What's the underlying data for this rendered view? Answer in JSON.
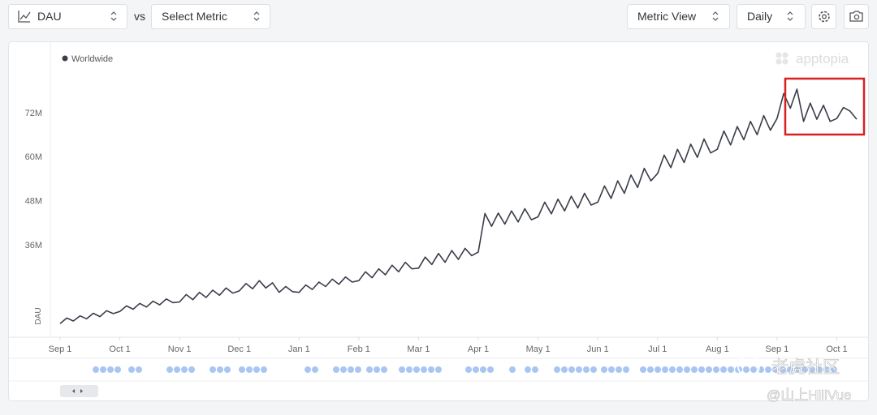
{
  "toolbar": {
    "metric": "DAU",
    "vs": "vs",
    "compare": "Select Metric",
    "view": "Metric View",
    "interval": "Daily"
  },
  "chart_data": {
    "type": "line",
    "brand": "apptopia",
    "y_label": "DAU",
    "x": [
      "Sep 1",
      "Sep 4",
      "Sep 8",
      "Sep 11",
      "Sep 15",
      "Sep 18",
      "Sep 22",
      "Sep 25",
      "Sep 29",
      "Oct 1",
      "Oct 4",
      "Oct 8",
      "Oct 11",
      "Oct 15",
      "Oct 18",
      "Oct 22",
      "Oct 25",
      "Oct 29",
      "Nov 1",
      "Nov 4",
      "Nov 8",
      "Nov 11",
      "Nov 15",
      "Nov 18",
      "Nov 22",
      "Nov 25",
      "Nov 29",
      "Dec 1",
      "Dec 4",
      "Dec 8",
      "Dec 11",
      "Dec 15",
      "Dec 18",
      "Dec 22",
      "Dec 25",
      "Dec 29",
      "Jan 1",
      "Jan 4",
      "Jan 8",
      "Jan 11",
      "Jan 15",
      "Jan 18",
      "Jan 22",
      "Jan 25",
      "Jan 29",
      "Feb 1",
      "Feb 4",
      "Feb 8",
      "Feb 11",
      "Feb 15",
      "Feb 18",
      "Feb 22",
      "Feb 25",
      "Feb 28",
      "Mar 1",
      "Mar 4",
      "Mar 8",
      "Mar 11",
      "Mar 15",
      "Mar 18",
      "Mar 22",
      "Mar 25",
      "Mar 29",
      "Apr 1",
      "Apr 4",
      "Apr 8",
      "Apr 11",
      "Apr 15",
      "Apr 18",
      "Apr 22",
      "Apr 25",
      "Apr 29",
      "May 1",
      "May 4",
      "May 8",
      "May 11",
      "May 15",
      "May 18",
      "May 22",
      "May 25",
      "May 29",
      "Jun 1",
      "Jun 4",
      "Jun 8",
      "Jun 11",
      "Jun 15",
      "Jun 18",
      "Jun 22",
      "Jun 25",
      "Jun 29",
      "Jul 1",
      "Jul 4",
      "Jul 8",
      "Jul 11",
      "Jul 15",
      "Jul 18",
      "Jul 22",
      "Jul 25",
      "Jul 29",
      "Aug 1",
      "Aug 4",
      "Aug 8",
      "Aug 11",
      "Aug 15",
      "Aug 18",
      "Aug 22",
      "Aug 25",
      "Aug 29",
      "Sep 1",
      "Sep 4",
      "Sep 8",
      "Sep 11",
      "Sep 15",
      "Sep 18",
      "Sep 22",
      "Sep 25",
      "Sep 29",
      "Oct 1",
      "Oct 4",
      "Oct 8",
      "Oct 11"
    ],
    "series": [
      {
        "name": "Worldwide",
        "color": "#3a3d4a",
        "values": [
          14.5,
          16,
          15.2,
          16.6,
          15.8,
          17.3,
          16.4,
          18,
          17.2,
          17.8,
          19.3,
          18.4,
          20,
          19,
          20.6,
          19.6,
          21.2,
          20.2,
          20.4,
          22.4,
          21,
          23,
          21.6,
          23.6,
          22.2,
          24.2,
          22.8,
          23.4,
          25.4,
          24,
          26.2,
          24.2,
          25.6,
          23,
          24.6,
          23.2,
          23,
          25,
          23.8,
          25.8,
          24.6,
          26.6,
          25.2,
          27.2,
          25.8,
          26.2,
          28.6,
          27,
          29.4,
          27.8,
          30.4,
          28.6,
          31.2,
          29.4,
          29.6,
          32.6,
          30.6,
          33.6,
          31.2,
          34.4,
          32,
          35,
          33,
          34,
          44.5,
          41,
          44.6,
          41.6,
          45.2,
          42.2,
          45.8,
          42.8,
          43.6,
          47.6,
          44.4,
          48.4,
          45.2,
          49.2,
          46,
          50,
          46.8,
          47.6,
          52,
          48.6,
          53.4,
          50,
          55,
          51.6,
          56.8,
          53.4,
          55.4,
          60.4,
          57,
          62,
          58.4,
          63.4,
          59.8,
          64.8,
          61,
          62,
          67,
          63.2,
          68.2,
          64.6,
          69.6,
          66,
          71.2,
          67.2,
          70.4,
          77.2,
          73.2,
          78.4,
          69.6,
          74.6,
          70.2,
          74,
          69.6,
          70.4,
          73.4,
          72.4,
          70.2
        ]
      }
    ],
    "ylim": [
      11,
      89
    ],
    "yticks": [
      {
        "value": 36,
        "label": "36M"
      },
      {
        "value": 48,
        "label": "48M"
      },
      {
        "value": 60,
        "label": "60M"
      },
      {
        "value": 72,
        "label": "72M"
      }
    ],
    "xticks": [
      "Sep 1",
      "Oct 1",
      "Nov 1",
      "Dec 1",
      "Jan 1",
      "Feb 1",
      "Mar 1",
      "Apr 1",
      "May 1",
      "Jun 1",
      "Jul 1",
      "Aug 1",
      "Sep 1",
      "Oct 1"
    ],
    "highlight_color": "#d91f1f"
  },
  "watermark": [
    "老虎社区",
    "@山上HillVue"
  ]
}
